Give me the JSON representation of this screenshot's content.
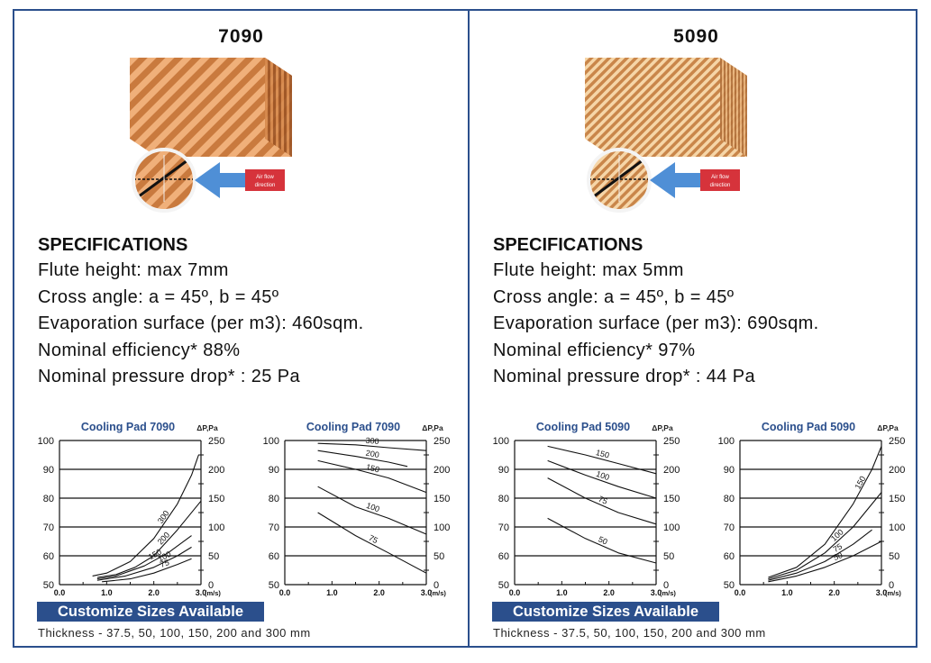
{
  "panels": [
    {
      "title": "7090",
      "pad_style": "coarse",
      "air_flow_label": [
        "Air flow",
        "direction"
      ],
      "specs": {
        "heading": "SPECIFICATIONS",
        "lines": [
          "Flute height: max 7mm",
          "Cross angle: a = 45º, b = 45º",
          "Evaporation surface (per m3): 460sqm.",
          "Nominal efficiency* 88%",
          "Nominal pressure drop* : 25 Pa"
        ]
      },
      "banner": "Customize Sizes Available",
      "thickness": "Thickness - 37.5, 50, 100, 150, 200 and 300 mm"
    },
    {
      "title": "5090",
      "pad_style": "fine",
      "air_flow_label": [
        "Air flow",
        "direction"
      ],
      "specs": {
        "heading": "SPECIFICATIONS",
        "lines": [
          "Flute height: max 5mm",
          "Cross angle: a = 45º, b = 45º",
          "Evaporation surface (per m3): 690sqm.",
          "Nominal efficiency* 97%",
          "Nominal pressure drop* : 44 Pa"
        ]
      },
      "banner": "Customize Sizes Available",
      "thickness": "Thickness - 37.5, 50, 100, 150, 200 and 300 mm"
    }
  ],
  "chart_data": [
    {
      "type": "line",
      "title": "Cooling Pad 7090",
      "unit_label": "ΔP,Pa",
      "x_unit": "(m/s)",
      "xlim": [
        0,
        3
      ],
      "x_ticks": [
        "0.0",
        "1.0",
        "2.0",
        "3.0"
      ],
      "ylim_left": [
        50,
        100
      ],
      "y_ticks_left": [
        "100",
        "90",
        "80",
        "70",
        "60",
        "50"
      ],
      "ylim_right": [
        0,
        250
      ],
      "y_ticks_right": [
        "250",
        "200",
        "150",
        "100",
        "50",
        "0"
      ],
      "gridlines": "horizontal",
      "series": [
        {
          "name": "300",
          "points": [
            [
              0.7,
              53
            ],
            [
              1.0,
              54
            ],
            [
              1.5,
              58
            ],
            [
              2.0,
              66
            ],
            [
              2.5,
              78
            ],
            [
              2.8,
              88
            ],
            [
              2.95,
              95
            ]
          ]
        },
        {
          "name": "200",
          "points": [
            [
              0.8,
              52.5
            ],
            [
              1.2,
              53.5
            ],
            [
              1.6,
              56
            ],
            [
              2.0,
              60
            ],
            [
              2.5,
              69
            ],
            [
              3.0,
              79
            ]
          ]
        },
        {
          "name": "150",
          "points": [
            [
              0.8,
              52
            ],
            [
              1.2,
              53
            ],
            [
              1.8,
              56.5
            ],
            [
              2.3,
              61
            ],
            [
              2.8,
              67
            ]
          ]
        },
        {
          "name": "100",
          "points": [
            [
              0.8,
              51.5
            ],
            [
              1.4,
              53
            ],
            [
              2.0,
              56
            ],
            [
              2.5,
              60
            ],
            [
              2.8,
              63
            ]
          ]
        },
        {
          "name": "75",
          "points": [
            [
              0.9,
              51
            ],
            [
              1.5,
              52
            ],
            [
              2.0,
              54
            ],
            [
              2.5,
              57
            ],
            [
              2.8,
              59
            ]
          ]
        }
      ]
    },
    {
      "type": "line",
      "title": "Cooling Pad 7090",
      "unit_label": "ΔP,Pa",
      "x_unit": "(m/s)",
      "xlim": [
        0,
        3
      ],
      "x_ticks": [
        "0.0",
        "1.0",
        "2.0",
        "3.0"
      ],
      "ylim_left": [
        50,
        100
      ],
      "y_ticks_left": [
        "100",
        "90",
        "80",
        "70",
        "60",
        "50"
      ],
      "ylim_right": [
        0,
        250
      ],
      "y_ticks_right": [
        "250",
        "200",
        "150",
        "100",
        "50",
        "0"
      ],
      "gridlines": "horizontal",
      "series": [
        {
          "name": "300",
          "points": [
            [
              0.7,
              99
            ],
            [
              1.5,
              98.5
            ],
            [
              2.2,
              97.5
            ],
            [
              3.0,
              96.5
            ]
          ]
        },
        {
          "name": "200",
          "points": [
            [
              0.7,
              96.5
            ],
            [
              1.5,
              94.5
            ],
            [
              2.2,
              92.5
            ],
            [
              2.6,
              91
            ]
          ]
        },
        {
          "name": "150",
          "points": [
            [
              0.7,
              93
            ],
            [
              1.5,
              90
            ],
            [
              2.2,
              87
            ],
            [
              3.0,
              82
            ]
          ]
        },
        {
          "name": "100",
          "points": [
            [
              0.7,
              84
            ],
            [
              1.5,
              77
            ],
            [
              2.2,
              73
            ],
            [
              3.0,
              67.5
            ]
          ]
        },
        {
          "name": "75",
          "points": [
            [
              0.7,
              75
            ],
            [
              1.5,
              67
            ],
            [
              2.2,
              61
            ],
            [
              3.0,
              54
            ]
          ]
        }
      ]
    },
    {
      "type": "line",
      "title": "Cooling Pad 5090",
      "unit_label": "ΔP,Pa",
      "x_unit": "(m/s)",
      "xlim": [
        0,
        3
      ],
      "x_ticks": [
        "0.0",
        "1.0",
        "2.0",
        "3.0"
      ],
      "ylim_left": [
        50,
        100
      ],
      "y_ticks_left": [
        "100",
        "90",
        "80",
        "70",
        "60",
        "50"
      ],
      "ylim_right": [
        0,
        250
      ],
      "y_ticks_right": [
        "250",
        "200",
        "150",
        "100",
        "50",
        "0"
      ],
      "gridlines": "horizontal",
      "series": [
        {
          "name": "150",
          "points": [
            [
              0.7,
              98
            ],
            [
              1.5,
              95
            ],
            [
              2.2,
              92
            ],
            [
              3.0,
              88.5
            ]
          ]
        },
        {
          "name": "100",
          "points": [
            [
              0.7,
              93
            ],
            [
              1.5,
              88
            ],
            [
              2.2,
              84
            ],
            [
              3.0,
              80
            ]
          ]
        },
        {
          "name": "75",
          "points": [
            [
              0.7,
              87
            ],
            [
              1.5,
              80
            ],
            [
              2.2,
              75
            ],
            [
              3.0,
              71
            ]
          ]
        },
        {
          "name": "50",
          "points": [
            [
              0.7,
              73
            ],
            [
              1.5,
              66
            ],
            [
              2.2,
              61
            ],
            [
              3.0,
              57.5
            ]
          ]
        }
      ]
    },
    {
      "type": "line",
      "title": "Cooling Pad 5090",
      "unit_label": "ΔP,Pa",
      "x_unit": "(m/s)",
      "xlim": [
        0,
        3
      ],
      "x_ticks": [
        "0.0",
        "1.0",
        "2.0",
        "3.0"
      ],
      "ylim_left": [
        50,
        100
      ],
      "y_ticks_left": [
        "100",
        "90",
        "80",
        "70",
        "60",
        "50"
      ],
      "ylim_right": [
        0,
        250
      ],
      "y_ticks_right": [
        "250",
        "200",
        "150",
        "100",
        "50",
        "0"
      ],
      "gridlines": "horizontal",
      "series": [
        {
          "name": "150",
          "points": [
            [
              0.6,
              52.5
            ],
            [
              1.2,
              56
            ],
            [
              1.8,
              64
            ],
            [
              2.4,
              78
            ],
            [
              2.8,
              90
            ],
            [
              3.0,
              98
            ]
          ]
        },
        {
          "name": "100",
          "points": [
            [
              0.6,
              52
            ],
            [
              1.2,
              55
            ],
            [
              1.8,
              61
            ],
            [
              2.4,
              70
            ],
            [
              3.0,
              82
            ]
          ]
        },
        {
          "name": "75",
          "points": [
            [
              0.6,
              51.5
            ],
            [
              1.2,
              54
            ],
            [
              1.8,
              58
            ],
            [
              2.4,
              64
            ],
            [
              2.8,
              69
            ]
          ]
        },
        {
          "name": "50",
          "points": [
            [
              0.6,
              51
            ],
            [
              1.2,
              53
            ],
            [
              1.8,
              56
            ],
            [
              2.4,
              60
            ],
            [
              3.0,
              65
            ]
          ]
        }
      ]
    }
  ],
  "colors": {
    "border": "#2b4f8c",
    "banner_bg": "#2b4f8c",
    "banner_text": "#ffffff",
    "chart_title": "#2b4f8c",
    "pad_light": "#e9a46b",
    "pad_dark": "#b86a32",
    "arrow": "#4f8fd6",
    "airflow_box": "#d6333b"
  }
}
